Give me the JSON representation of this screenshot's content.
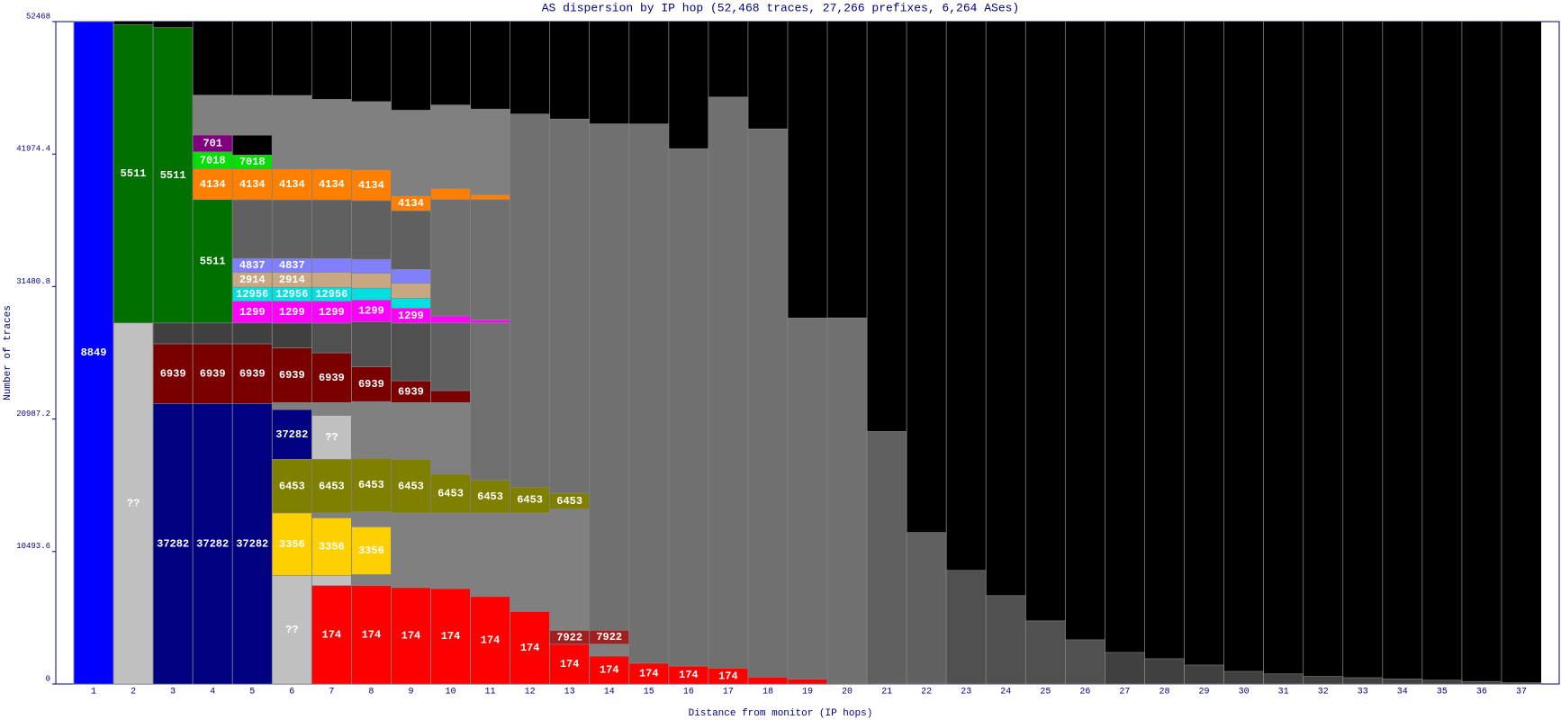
{
  "chart_data": {
    "type": "stacked-columns",
    "title": "AS dispersion by IP hop (52,468 traces, 27,266 prefixes, 6,264 ASes)",
    "x_label": "Distance from monitor (IP hops)",
    "y_label": "Number of traces",
    "ylim": [
      0,
      52468
    ],
    "yticks": [
      0,
      10493.6,
      20987.2,
      31480.8,
      41974.4,
      52468
    ],
    "categories": [
      "1",
      "2",
      "3",
      "4",
      "5",
      "6",
      "7",
      "8",
      "9",
      "10",
      "11",
      "12",
      "13",
      "14",
      "15",
      "16",
      "17",
      "18",
      "19",
      "20",
      "21",
      "22",
      "23",
      "24",
      "25",
      "26",
      "27",
      "28",
      "29",
      "30",
      "31",
      "32",
      "33",
      "34",
      "35",
      "36",
      "37"
    ],
    "columns": [
      {
        "segments": [
          {
            "value": 52468,
            "color": "#0000ff",
            "label": "8849"
          }
        ]
      },
      {
        "segments": [
          {
            "value": 28600,
            "color": "#c0c0c0",
            "label": "??"
          },
          {
            "value": 23640,
            "color": "#007000",
            "label": "5511"
          }
        ]
      },
      {
        "segments": [
          {
            "value": 22220,
            "color": "#000080",
            "label": "37282"
          },
          {
            "value": 4730,
            "color": "#7a0000",
            "label": "6939"
          },
          {
            "value": 1650,
            "color": "#404040"
          },
          {
            "value": 23400,
            "color": "#007000",
            "label": "5511"
          }
        ]
      },
      {
        "segments": [
          {
            "value": 22220,
            "color": "#000080",
            "label": "37282"
          },
          {
            "value": 4730,
            "color": "#7a0000",
            "label": "6939"
          },
          {
            "value": 1650,
            "color": "#404040"
          },
          {
            "value": 9770,
            "color": "#007000",
            "label": "5511"
          },
          {
            "value": 2440,
            "color": "#ff8000",
            "label": "4134"
          },
          {
            "value": 1340,
            "color": "#00e000",
            "label": "7018"
          },
          {
            "value": 1340,
            "color": "#800080",
            "label": "701"
          },
          {
            "value": 3150,
            "color": "#808080"
          }
        ]
      },
      {
        "segments": [
          {
            "value": 22220,
            "color": "#000080",
            "label": "37282"
          },
          {
            "value": 4730,
            "color": "#7a0000",
            "label": "6939"
          },
          {
            "value": 1650,
            "color": "#404040"
          },
          {
            "value": 1730,
            "color": "#ff00ff",
            "label": "1299"
          },
          {
            "value": 1100,
            "color": "#00e0e0",
            "label": "12956"
          },
          {
            "value": 1180,
            "color": "#c8a882",
            "label": "2914"
          },
          {
            "value": 1100,
            "color": "#8080ff",
            "label": "4837"
          },
          {
            "value": 4650,
            "color": "#606060"
          },
          {
            "value": 2440,
            "color": "#ff8000",
            "label": "4134"
          },
          {
            "value": 1100,
            "color": "#00e000",
            "label": "7018"
          },
          {
            "value": 1580,
            "color": "#000000"
          },
          {
            "value": 3150,
            "color": "#808080"
          }
        ]
      },
      {
        "segments": [
          {
            "value": 8590,
            "color": "#c0c0c0",
            "label": "??"
          },
          {
            "value": 4960,
            "color": "#ffd000",
            "label": "3356"
          },
          {
            "value": 4250,
            "color": "#808000",
            "label": "6453"
          },
          {
            "value": 3940,
            "color": "#000080",
            "label": "37282"
          },
          {
            "value": 550,
            "color": "#808080"
          },
          {
            "value": 4330,
            "color": "#7a0000",
            "label": "6939"
          },
          {
            "value": 1970,
            "color": "#404040"
          },
          {
            "value": 1730,
            "color": "#ff00ff",
            "label": "1299"
          },
          {
            "value": 1100,
            "color": "#00e0e0",
            "label": "12956"
          },
          {
            "value": 1180,
            "color": "#c8a882",
            "label": "2914"
          },
          {
            "value": 1100,
            "color": "#8080ff",
            "label": "4837"
          },
          {
            "value": 4650,
            "color": "#606060"
          },
          {
            "value": 2440,
            "color": "#ff8000",
            "label": "4134"
          },
          {
            "value": 5830,
            "color": "#808080"
          }
        ]
      },
      {
        "segments": [
          {
            "value": 7800,
            "color": "#ff0000",
            "label": "174"
          },
          {
            "value": 790,
            "color": "#c0c0c0"
          },
          {
            "value": 4570,
            "color": "#ffd000",
            "label": "3356"
          },
          {
            "value": 390,
            "color": "#808080"
          },
          {
            "value": 4250,
            "color": "#808000",
            "label": "6453"
          },
          {
            "value": 3470,
            "color": "#c0c0c0",
            "label": "??"
          },
          {
            "value": 1020,
            "color": "#808080"
          },
          {
            "value": 3940,
            "color": "#7a0000",
            "label": "6939"
          },
          {
            "value": 2360,
            "color": "#505050"
          },
          {
            "value": 1730,
            "color": "#ff00ff",
            "label": "1299"
          },
          {
            "value": 1100,
            "color": "#00e0e0",
            "label": "12956"
          },
          {
            "value": 1180,
            "color": "#c8a882"
          },
          {
            "value": 1100,
            "color": "#8080ff"
          },
          {
            "value": 4650,
            "color": "#606060"
          },
          {
            "value": 2440,
            "color": "#ff8000",
            "label": "4134"
          },
          {
            "value": 5520,
            "color": "#808080"
          }
        ]
      },
      {
        "segments": [
          {
            "value": 7800,
            "color": "#ff0000",
            "label": "174"
          },
          {
            "value": 870,
            "color": "#808080"
          },
          {
            "value": 3780,
            "color": "#ffd000",
            "label": "3356"
          },
          {
            "value": 1180,
            "color": "#808080"
          },
          {
            "value": 4250,
            "color": "#808000",
            "label": "6453"
          },
          {
            "value": 4490,
            "color": "#808080"
          },
          {
            "value": 2760,
            "color": "#7a0000",
            "label": "6939"
          },
          {
            "value": 3550,
            "color": "#505050"
          },
          {
            "value": 1730,
            "color": "#ff00ff",
            "label": "1299"
          },
          {
            "value": 950,
            "color": "#00e0e0"
          },
          {
            "value": 1180,
            "color": "#c8a882"
          },
          {
            "value": 1100,
            "color": "#8080ff"
          },
          {
            "value": 4650,
            "color": "#606060"
          },
          {
            "value": 2440,
            "color": "#ff8000",
            "label": "4134"
          },
          {
            "value": 5400,
            "color": "#808080"
          }
        ]
      },
      {
        "segments": [
          {
            "value": 7640,
            "color": "#ff0000",
            "label": "174"
          },
          {
            "value": 5910,
            "color": "#808080"
          },
          {
            "value": 4250,
            "color": "#808000",
            "label": "6453"
          },
          {
            "value": 4490,
            "color": "#808080"
          },
          {
            "value": 1730,
            "color": "#7a0000",
            "label": "6939"
          },
          {
            "value": 4570,
            "color": "#505050"
          },
          {
            "value": 1180,
            "color": "#ff00ff",
            "label": "1299"
          },
          {
            "value": 790,
            "color": "#00e0e0"
          },
          {
            "value": 1180,
            "color": "#c8a882"
          },
          {
            "value": 1100,
            "color": "#8080ff"
          },
          {
            "value": 4650,
            "color": "#606060"
          },
          {
            "value": 1180,
            "color": "#ff8000",
            "label": "4134"
          },
          {
            "value": 6780,
            "color": "#808080"
          }
        ]
      },
      {
        "segments": [
          {
            "value": 7560,
            "color": "#ff0000",
            "label": "174"
          },
          {
            "value": 5990,
            "color": "#808080"
          },
          {
            "value": 3070,
            "color": "#808000",
            "label": "6453"
          },
          {
            "value": 5670,
            "color": "#808080"
          },
          {
            "value": 950,
            "color": "#7a0000"
          },
          {
            "value": 5360,
            "color": "#606060"
          },
          {
            "value": 550,
            "color": "#ff00ff"
          },
          {
            "value": 9220,
            "color": "#707070"
          },
          {
            "value": 870,
            "color": "#ff8000"
          },
          {
            "value": 6620,
            "color": "#808080"
          }
        ]
      },
      {
        "segments": [
          {
            "value": 6930,
            "color": "#ff0000",
            "label": "174"
          },
          {
            "value": 6620,
            "color": "#808080"
          },
          {
            "value": 2600,
            "color": "#808000",
            "label": "6453"
          },
          {
            "value": 12450,
            "color": "#707070"
          },
          {
            "value": 240,
            "color": "#ff00ff"
          },
          {
            "value": 9530,
            "color": "#707070"
          },
          {
            "value": 390,
            "color": "#ff8000"
          },
          {
            "value": 6780,
            "color": "#808080"
          }
        ]
      },
      {
        "segments": [
          {
            "value": 5750,
            "color": "#ff0000",
            "label": "174"
          },
          {
            "value": 7800,
            "color": "#808080"
          },
          {
            "value": 2050,
            "color": "#808000",
            "label": "6453"
          },
          {
            "value": 29550,
            "color": "#707070"
          }
        ]
      },
      {
        "segments": [
          {
            "value": 3150,
            "color": "#ff0000",
            "label": "174"
          },
          {
            "value": 1100,
            "color": "#a02020",
            "label": "7922"
          },
          {
            "value": 9610,
            "color": "#808080"
          },
          {
            "value": 1260,
            "color": "#808000",
            "label": "6453"
          },
          {
            "value": 29630,
            "color": "#707070"
          }
        ]
      },
      {
        "segments": [
          {
            "value": 2210,
            "color": "#ff0000",
            "label": "174"
          },
          {
            "value": 950,
            "color": "#808080"
          },
          {
            "value": 1100,
            "color": "#a02020",
            "label": "7922"
          },
          {
            "value": 40110,
            "color": "#707070"
          }
        ]
      },
      {
        "segments": [
          {
            "value": 1650,
            "color": "#ff0000",
            "label": "174"
          },
          {
            "value": 42710,
            "color": "#707070"
          }
        ]
      },
      {
        "segments": [
          {
            "value": 1420,
            "color": "#ff0000",
            "label": "174"
          },
          {
            "value": 40980,
            "color": "#707070"
          }
        ]
      },
      {
        "segments": [
          {
            "value": 1260,
            "color": "#ff0000",
            "label": "174"
          },
          {
            "value": 45230,
            "color": "#707070"
          }
        ]
      },
      {
        "segments": [
          {
            "value": 550,
            "color": "#ff0000"
          },
          {
            "value": 43420,
            "color": "#707070"
          }
        ]
      },
      {
        "segments": [
          {
            "value": 390,
            "color": "#ff0000"
          },
          {
            "value": 28600,
            "color": "#707070"
          }
        ]
      },
      {
        "segments": [
          {
            "value": 29000,
            "color": "#707070"
          }
        ]
      },
      {
        "segments": [
          {
            "value": 20000,
            "color": "#606060"
          }
        ]
      },
      {
        "segments": [
          {
            "value": 12000,
            "color": "#606060"
          }
        ]
      },
      {
        "segments": [
          {
            "value": 9000,
            "color": "#505050"
          }
        ]
      },
      {
        "segments": [
          {
            "value": 7000,
            "color": "#505050"
          }
        ]
      },
      {
        "segments": [
          {
            "value": 5000,
            "color": "#505050"
          }
        ]
      },
      {
        "segments": [
          {
            "value": 3500,
            "color": "#505050"
          }
        ]
      },
      {
        "segments": [
          {
            "value": 2500,
            "color": "#404040"
          }
        ]
      },
      {
        "segments": [
          {
            "value": 2000,
            "color": "#404040"
          }
        ]
      },
      {
        "segments": [
          {
            "value": 1500,
            "color": "#404040"
          }
        ]
      },
      {
        "segments": [
          {
            "value": 1000,
            "color": "#404040"
          }
        ]
      },
      {
        "segments": [
          {
            "value": 800,
            "color": "#404040"
          }
        ]
      },
      {
        "segments": [
          {
            "value": 600,
            "color": "#404040"
          }
        ]
      },
      {
        "segments": [
          {
            "value": 500,
            "color": "#404040"
          }
        ]
      },
      {
        "segments": [
          {
            "value": 400,
            "color": "#404040"
          }
        ]
      },
      {
        "segments": [
          {
            "value": 300,
            "color": "#404040"
          }
        ]
      },
      {
        "segments": [
          {
            "value": 200,
            "color": "#404040"
          }
        ]
      },
      {
        "segments": [
          {
            "value": 100,
            "color": "#404040"
          }
        ]
      }
    ]
  }
}
